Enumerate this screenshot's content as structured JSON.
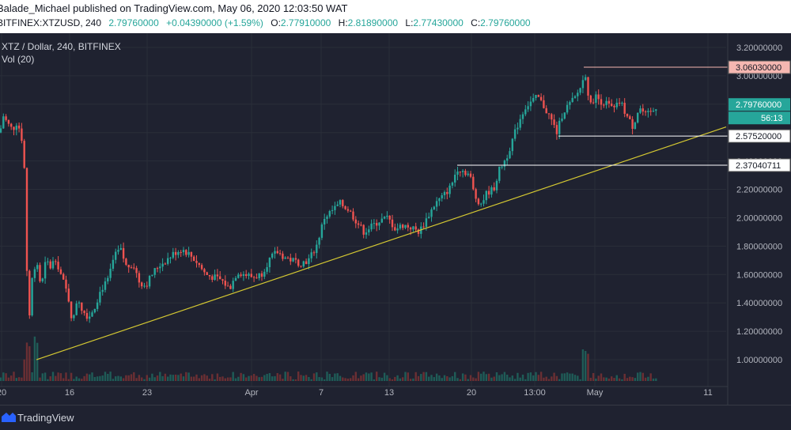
{
  "header": {
    "publisher": "Balade_Michael published on TradingView.com, May 06, 2020 12:03:50 WAT"
  },
  "ohlc": {
    "symbol": "BITFINEX:XTZUSD, 240",
    "last": "2.79760000",
    "change": "+0.04390000 (+1.59%)",
    "o_label": "O:",
    "o": "2.77910000",
    "h_label": "H:",
    "h": "2.81890000",
    "l_label": "L:",
    "l": "2.77430000",
    "c_label": "C:",
    "c": "2.79760000"
  },
  "legend": {
    "title": "XTZ / Dollar, 240, BITFINEX",
    "volume": "Vol (20)"
  },
  "colors": {
    "background": "#1f2230",
    "up": "#26a69a",
    "down": "#ef5350",
    "trendline": "#d4c832",
    "high_label_bg": "#f5b7b1",
    "price_label_bg": "#26a69a"
  },
  "footer": {
    "brand": "TradingView"
  },
  "chart_data": {
    "type": "candlestick",
    "ylim": [
      0.85,
      3.3
    ],
    "y_ticks": [
      "3.20000000",
      "3.00000000",
      "2.80000000",
      "2.60000000",
      "2.40000000",
      "2.20000000",
      "2.00000000",
      "1.80000000",
      "1.60000000",
      "1.40000000",
      "1.20000000",
      "1.00000000"
    ],
    "x_ticks": [
      "20",
      "16",
      "23",
      "Apr",
      "7",
      "13",
      "20",
      "13:00",
      "May",
      "11"
    ],
    "price_labels": {
      "high": "3.06030000",
      "last": "2.79760000",
      "countdown": "56:13",
      "support_1": "2.57520000",
      "support_2": "2.37040711"
    },
    "levels": [
      3.0603,
      2.5752,
      2.37040711
    ],
    "trendline": {
      "from": [
        1.0,
        1.0
      ],
      "to": [
        3.0,
        2.64
      ]
    },
    "close_path": [
      [
        0,
        2.6
      ],
      [
        4,
        2.72
      ],
      [
        10,
        2.66
      ],
      [
        16,
        2.62
      ],
      [
        22,
        2.68
      ],
      [
        30,
        2.5
      ],
      [
        36,
        1.2
      ],
      [
        40,
        1.55
      ],
      [
        46,
        1.72
      ],
      [
        52,
        1.5
      ],
      [
        58,
        1.7
      ],
      [
        64,
        1.65
      ],
      [
        70,
        1.72
      ],
      [
        78,
        1.58
      ],
      [
        86,
        1.45
      ],
      [
        92,
        1.25
      ],
      [
        98,
        1.45
      ],
      [
        104,
        1.35
      ],
      [
        112,
        1.3
      ],
      [
        120,
        1.38
      ],
      [
        128,
        1.5
      ],
      [
        136,
        1.55
      ],
      [
        144,
        1.72
      ],
      [
        152,
        1.78
      ],
      [
        160,
        1.65
      ],
      [
        168,
        1.68
      ],
      [
        176,
        1.55
      ],
      [
        184,
        1.52
      ],
      [
        192,
        1.6
      ],
      [
        200,
        1.66
      ],
      [
        210,
        1.7
      ],
      [
        220,
        1.75
      ],
      [
        230,
        1.78
      ],
      [
        240,
        1.74
      ],
      [
        250,
        1.68
      ],
      [
        260,
        1.6
      ],
      [
        270,
        1.58
      ],
      [
        280,
        1.56
      ],
      [
        290,
        1.5
      ],
      [
        300,
        1.62
      ],
      [
        310,
        1.6
      ],
      [
        320,
        1.58
      ],
      [
        330,
        1.6
      ],
      [
        340,
        1.7
      ],
      [
        350,
        1.76
      ],
      [
        360,
        1.72
      ],
      [
        370,
        1.7
      ],
      [
        380,
        1.68
      ],
      [
        390,
        1.7
      ],
      [
        400,
        1.8
      ],
      [
        410,
        2.0
      ],
      [
        420,
        2.05
      ],
      [
        430,
        2.1
      ],
      [
        440,
        2.06
      ],
      [
        450,
        1.98
      ],
      [
        460,
        1.9
      ],
      [
        470,
        1.94
      ],
      [
        480,
        1.98
      ],
      [
        490,
        2.0
      ],
      [
        500,
        1.92
      ],
      [
        510,
        1.95
      ],
      [
        520,
        1.93
      ],
      [
        530,
        1.9
      ],
      [
        540,
        2.0
      ],
      [
        550,
        2.1
      ],
      [
        560,
        2.15
      ],
      [
        570,
        2.22
      ],
      [
        578,
        2.35
      ],
      [
        586,
        2.33
      ],
      [
        594,
        2.3
      ],
      [
        600,
        2.15
      ],
      [
        608,
        2.1
      ],
      [
        616,
        2.18
      ],
      [
        624,
        2.2
      ],
      [
        632,
        2.35
      ],
      [
        640,
        2.42
      ],
      [
        648,
        2.55
      ],
      [
        656,
        2.68
      ],
      [
        664,
        2.78
      ],
      [
        672,
        2.82
      ],
      [
        680,
        2.85
      ],
      [
        688,
        2.78
      ],
      [
        696,
        2.7
      ],
      [
        704,
        2.6
      ],
      [
        712,
        2.75
      ],
      [
        720,
        2.8
      ],
      [
        728,
        2.85
      ],
      [
        736,
        2.95
      ],
      [
        740,
        3.02
      ],
      [
        746,
        2.78
      ],
      [
        752,
        2.86
      ],
      [
        760,
        2.82
      ],
      [
        768,
        2.8
      ],
      [
        776,
        2.76
      ],
      [
        784,
        2.82
      ],
      [
        792,
        2.72
      ],
      [
        800,
        2.64
      ],
      [
        808,
        2.78
      ],
      [
        816,
        2.72
      ],
      [
        824,
        2.74
      ],
      [
        832,
        2.8
      ]
    ]
  }
}
